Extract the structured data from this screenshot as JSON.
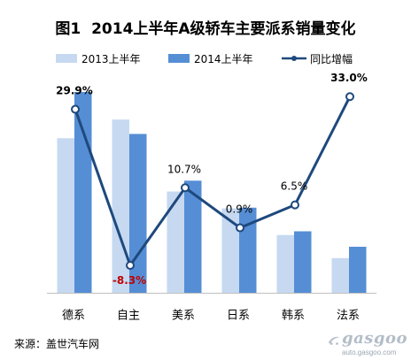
{
  "chart_data": {
    "type": "bar",
    "title": "图1  2014上半年A级轿车主要派系销量变化",
    "categories": [
      "德系",
      "自主",
      "美系",
      "日系",
      "韩系",
      "法系"
    ],
    "series": [
      {
        "name": "2013上半年",
        "type": "bar",
        "color": "#c6d9f1",
        "values": [
          87,
          97.5,
          57,
          47.5,
          32.5,
          19.5
        ]
      },
      {
        "name": "2014上半年",
        "type": "bar",
        "color": "#558ed5",
        "values": [
          113,
          89.4,
          63.1,
          47.9,
          34.6,
          25.9
        ]
      },
      {
        "name": "同比增幅",
        "type": "line",
        "axis": "secondary",
        "color": "#1f497d",
        "negative_label_color": "#c00000",
        "values": [
          29.9,
          -8.3,
          10.7,
          0.9,
          6.5,
          33.0
        ],
        "labels": [
          "29.9%",
          "-8.3%",
          "10.7%",
          "0.9%",
          "6.5%",
          "33.0%"
        ]
      }
    ],
    "ylim": [
      0,
      115
    ],
    "y2lim": [
      -15,
      35
    ],
    "grid": false,
    "legend": "top"
  },
  "source": "来源：盖世汽车网",
  "watermark": {
    "brand": "gasgoo",
    "url": "auto.gasgoo.com"
  }
}
